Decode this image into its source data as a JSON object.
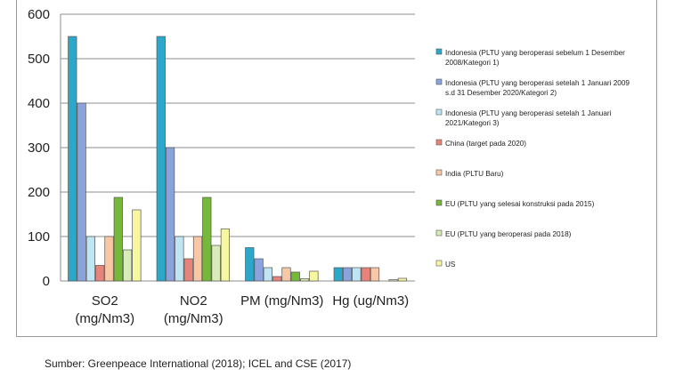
{
  "chart_data": {
    "type": "bar",
    "categories": [
      [
        "SO2",
        "(mg/Nm3)"
      ],
      [
        "NO2",
        "(mg/Nm3)"
      ],
      [
        "PM (mg/Nm3)"
      ],
      [
        "Hg (ug/Nm3)"
      ]
    ],
    "ylim": [
      0,
      600
    ],
    "yticks": [
      0,
      100,
      200,
      300,
      400,
      500,
      600
    ],
    "grid": true,
    "legend_position": "right",
    "series": [
      {
        "name": "Indonesia (PLTU yang beroperasi sebelum 1 Desember 2008/Kategori 1)",
        "legend_lines": [
          "Indonesia (PLTU yang beroperasi sebelum 1 Desember",
          "2008/Kategori 1)"
        ],
        "color": "#2ba8c9",
        "values": [
          550,
          550,
          75,
          30
        ]
      },
      {
        "name": "Indonesia (PLTU yang beroperasi setelah 1 Januari 2009 s.d 31 Desember 2020/Kategori 2)",
        "legend_lines": [
          "Indonesia (PLTU yang beroperasi setelah 1 Januari 2009",
          "s.d 31 Desember 2020/Kategori 2)"
        ],
        "color": "#8aa3dc",
        "values": [
          400,
          300,
          50,
          30
        ]
      },
      {
        "name": "Indonesia (PLTU yang beroperasi setelah 1 Januari 2021/Kategori 3)",
        "legend_lines": [
          "Indonesia (PLTU yang beroperasi setelah 1 Januari",
          "2021/Kategori 3)"
        ],
        "color": "#bfe5f3",
        "values": [
          100,
          100,
          30,
          30
        ]
      },
      {
        "name": "China (target pada 2020)",
        "legend_lines": [
          "China (target pada 2020)"
        ],
        "color": "#e8837a",
        "values": [
          35,
          50,
          10,
          30
        ]
      },
      {
        "name": "India (PLTU Baru)",
        "legend_lines": [
          "India (PLTU Baru)"
        ],
        "color": "#f8c8a6",
        "values": [
          100,
          100,
          30,
          30
        ]
      },
      {
        "name": "EU (PLTU yang selesai konstruksi pada 2015)",
        "legend_lines": [
          "EU (PLTU yang selesai konstruksi pada 2015)"
        ],
        "color": "#76b83a",
        "values": [
          188,
          188,
          20,
          0
        ]
      },
      {
        "name": "EU (PLTU yang beroperasi pada 2018)",
        "legend_lines": [
          "EU (PLTU yang beroperasi pada 2018)"
        ],
        "color": "#d8ebb8",
        "values": [
          70,
          80,
          5,
          3
        ]
      },
      {
        "name": "US",
        "legend_lines": [
          "US"
        ],
        "color": "#f7f7a0",
        "values": [
          160,
          117,
          22,
          6
        ]
      }
    ]
  },
  "footer": {
    "source": "Sumber: Greenpeace International (2018); ICEL and CSE (2017)"
  }
}
